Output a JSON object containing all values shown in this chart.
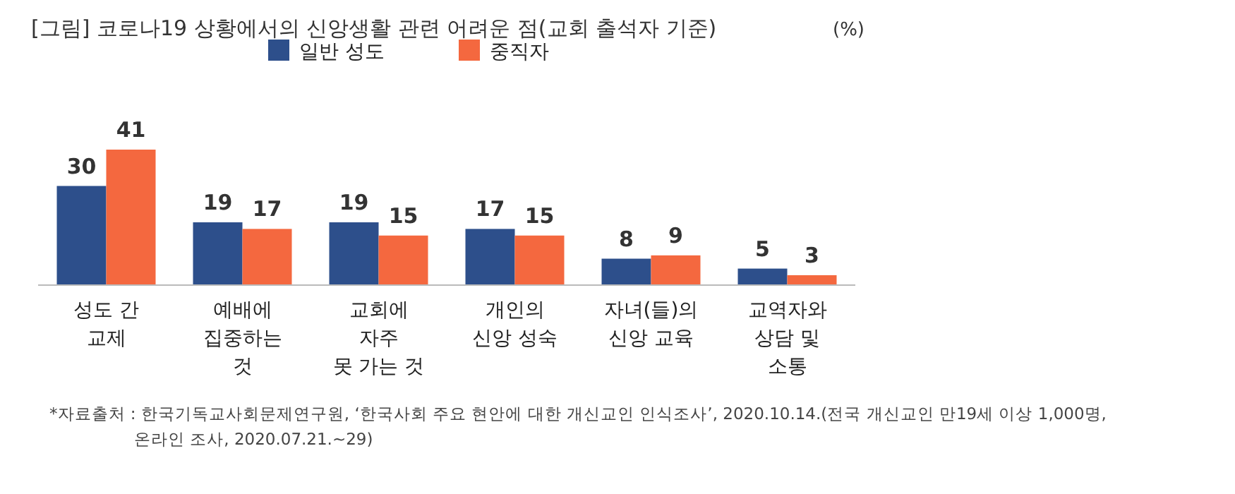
{
  "chart_data": {
    "type": "bar",
    "title": "[그림]  코로나19 상황에서의 신앙생활 관련 어려운 점(교회 출석자 기준)",
    "subtitle": "(%)",
    "categories": [
      "성도 간\n교제",
      "예배에\n집중하는\n것",
      "교회에\n자주\n못 가는 것",
      "개인의\n신앙 성숙",
      "자녀(들)의\n신앙 교육",
      "교역자와\n상담 및\n소통"
    ],
    "series": [
      {
        "name": "일반 성도",
        "color": "#2d4f8b",
        "values": [
          30,
          19,
          19,
          17,
          8,
          5
        ]
      },
      {
        "name": "중직자",
        "color": "#f4683f",
        "values": [
          41,
          17,
          15,
          15,
          9,
          3
        ]
      }
    ],
    "data_labels": true,
    "legend": "top",
    "annotations": [
      "*자료출처 : 한국기독교사회문제연구원, ‘한국사회 주요 현안에 대한 개신교인 인식조사’, 2020.10.14.(전국 개신교인 만19세 이상 1,000명,\n온라인 조사, 2020.07.21.~29)"
    ]
  }
}
